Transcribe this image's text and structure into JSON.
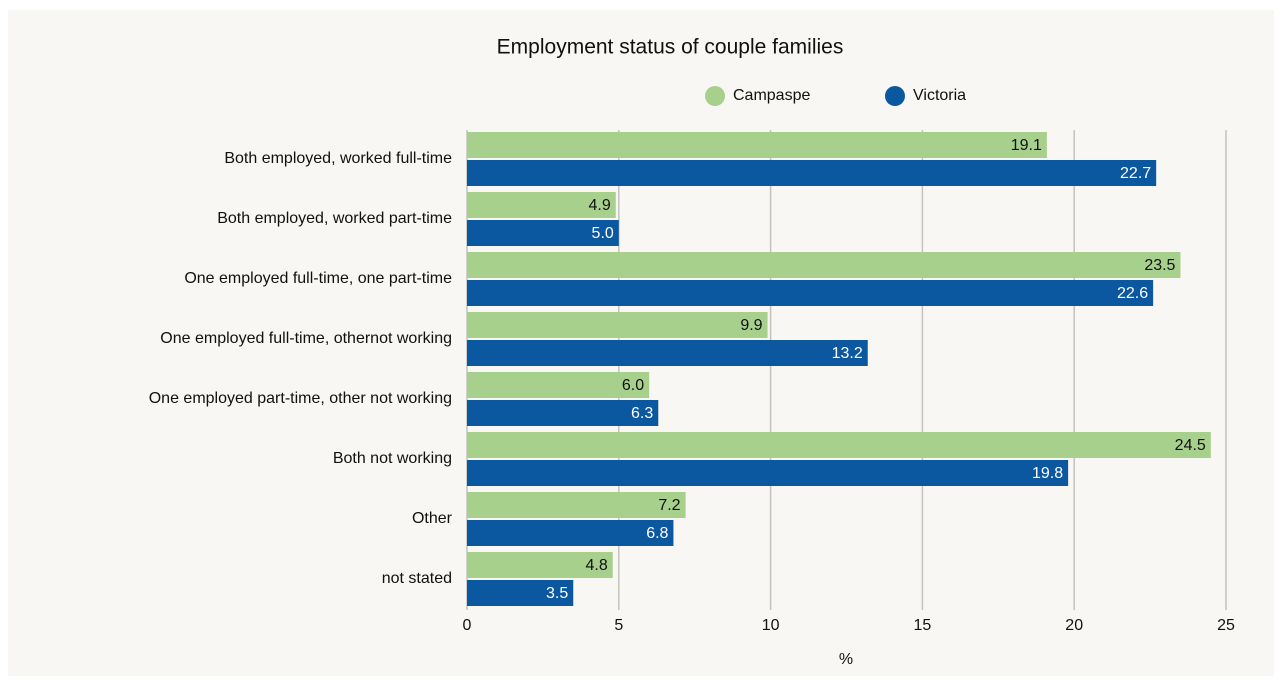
{
  "chart_data": {
    "type": "hbar",
    "title": "Employment status of couple families",
    "categories": [
      "Both employed, worked full-time",
      "Both employed, worked part-time",
      "One employed full-time, one part-time",
      "One employed full-time, othernot working",
      "One employed part-time, other not working",
      "Both not working",
      "Other",
      "not stated"
    ],
    "series": [
      {
        "name": "Campaspe",
        "color": "#a8d08d",
        "label_color": "#111111",
        "values": [
          19.1,
          4.9,
          23.5,
          9.9,
          6.0,
          24.5,
          7.2,
          4.8
        ],
        "value_labels": [
          "19.1",
          "4.9",
          "23.5",
          "9.9",
          "6.0",
          "24.5",
          "7.2",
          "4.8"
        ]
      },
      {
        "name": "Victoria",
        "color": "#0b57a0",
        "label_color": "#ffffff",
        "values": [
          22.7,
          5.0,
          22.6,
          13.2,
          6.3,
          19.8,
          6.8,
          3.5
        ],
        "value_labels": [
          "22.7",
          "5.0",
          "22.6",
          "13.2",
          "6.3",
          "19.8",
          "6.8",
          "3.5"
        ]
      }
    ],
    "xlabel": "%",
    "xlim": [
      0,
      25
    ],
    "xticks": [
      0,
      5,
      10,
      15,
      20,
      25
    ],
    "grid": true
  }
}
